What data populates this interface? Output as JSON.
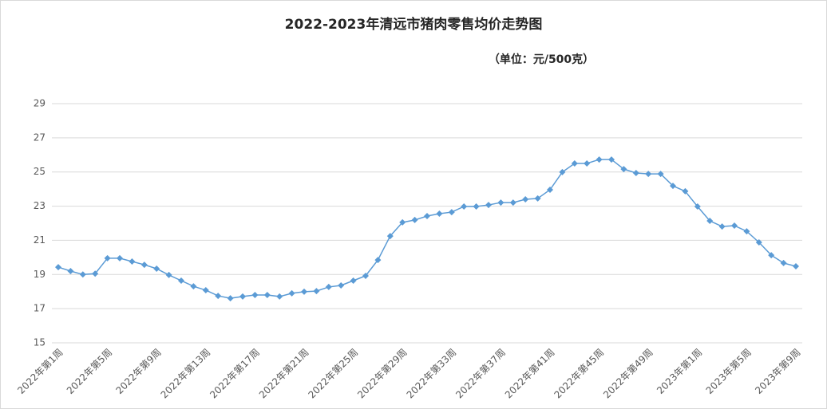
{
  "chart_data": {
    "type": "line",
    "title": "2022-2023年清远市猪肉零售均价走势图",
    "subtitle": "（单位：元/500克）",
    "categories": [
      "2022年第1周",
      null,
      null,
      null,
      "2022年第5周",
      null,
      null,
      null,
      "2022年第9周",
      null,
      null,
      null,
      "2022年第13周",
      null,
      null,
      null,
      "2022年第17周",
      null,
      null,
      null,
      "2022年第21周",
      null,
      null,
      null,
      "2022年第25周",
      null,
      null,
      null,
      "2022年第29周",
      null,
      null,
      null,
      "2022年第33周",
      null,
      null,
      null,
      "2022年第37周",
      null,
      null,
      null,
      "2022年第41周",
      null,
      null,
      null,
      "2022年第45周",
      null,
      null,
      null,
      "2022年第49周",
      null,
      null,
      null,
      "2023年第1周",
      null,
      null,
      null,
      "2023年第5周",
      null,
      null,
      null,
      "2023年第9周"
    ],
    "series": [
      {
        "color": "#5b9bd5",
        "values": [
          19.43,
          19.2,
          19.0,
          19.05,
          19.95,
          19.95,
          19.76,
          19.57,
          19.34,
          18.97,
          18.64,
          18.31,
          18.08,
          17.75,
          17.61,
          17.71,
          17.8,
          17.8,
          17.71,
          17.9,
          17.99,
          18.03,
          18.27,
          18.36,
          18.64,
          18.92,
          19.85,
          21.25,
          22.05,
          22.19,
          22.42,
          22.56,
          22.65,
          22.98,
          22.98,
          23.07,
          23.21,
          23.21,
          23.4,
          23.45,
          23.96,
          24.99,
          25.5,
          25.5,
          25.73,
          25.73,
          25.17,
          24.94,
          24.89,
          24.89,
          24.19,
          23.87,
          22.98,
          22.14,
          21.81,
          21.86,
          21.53,
          20.88,
          20.13,
          19.67,
          19.48
        ]
      }
    ],
    "ylim": [
      15,
      29
    ],
    "yticks": [
      15,
      17,
      19,
      21,
      23,
      25,
      27,
      29
    ],
    "grid": true
  }
}
